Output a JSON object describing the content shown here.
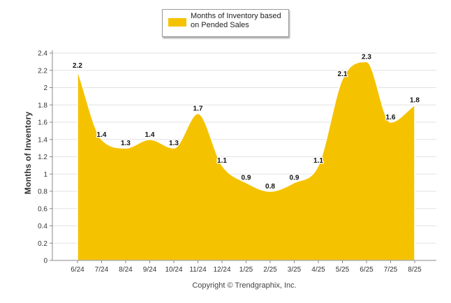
{
  "chart_data": {
    "type": "area",
    "categories": [
      "6/24",
      "7/24",
      "8/24",
      "9/24",
      "10/24",
      "11/24",
      "12/24",
      "1/25",
      "2/25",
      "3/25",
      "4/25",
      "5/25",
      "6/25",
      "7/25",
      "8/25"
    ],
    "series": [
      {
        "name": "Months of Inventory based on Pended Sales",
        "values": [
          2.2,
          1.4,
          1.3,
          1.4,
          1.3,
          1.7,
          1.1,
          0.9,
          0.8,
          0.9,
          1.1,
          2.1,
          2.3,
          1.6,
          1.8
        ],
        "color": "#f5c200"
      }
    ],
    "data_labels": [
      "2.2",
      "1.4",
      "1.3",
      "1.4",
      "1.3",
      "1.7",
      "1.1",
      "0.9",
      "0.8",
      "0.9",
      "1.1",
      "2.1",
      "2.3",
      "1.6",
      "1.8"
    ],
    "ylabel": "Months of Inventory",
    "xlabel": "",
    "ylim": [
      0,
      2.4
    ],
    "yticks": [
      0,
      0.2,
      0.4,
      0.6,
      0.8,
      1,
      1.2,
      1.4,
      1.6,
      1.8,
      2,
      2.2,
      2.4
    ],
    "ytick_labels": [
      "0",
      "0.2",
      "0.4",
      "0.6",
      "0.8",
      "1",
      "1.2",
      "1.4",
      "1.6",
      "1.8",
      "2",
      "2.2",
      "2.4"
    ],
    "grid": true,
    "legend_position": "top-center",
    "legend_label": "Months of Inventory based on Pended Sales"
  },
  "footer": {
    "copyright": "Copyright © Trendgraphix, Inc."
  }
}
